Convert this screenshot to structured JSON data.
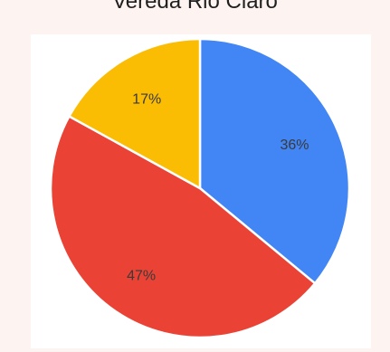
{
  "chart_data": {
    "type": "pie",
    "title": "Vereda Rio Claro",
    "slices": [
      {
        "value": 36,
        "label": "36%",
        "color": "#4285f4"
      },
      {
        "value": 47,
        "label": "47%",
        "color": "#ea4335"
      },
      {
        "value": 17,
        "label": "17%",
        "color": "#fbbc04"
      }
    ],
    "start_angle_deg": 0,
    "direction": "clockwise",
    "slice_border_color": "#ffffff",
    "legend": "none"
  }
}
